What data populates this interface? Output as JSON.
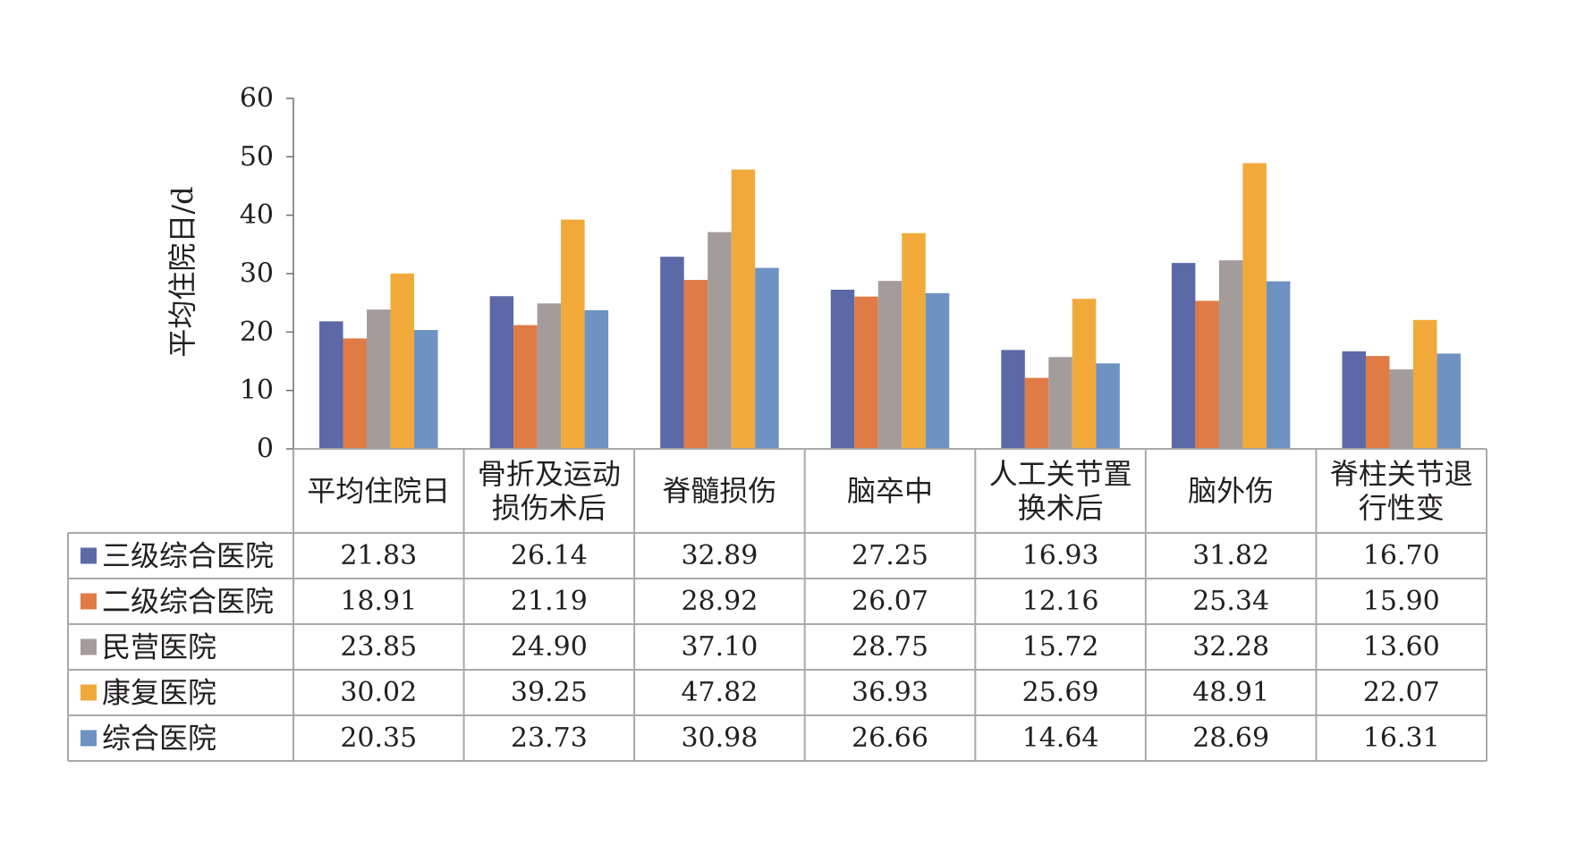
{
  "chart_data": {
    "type": "bar",
    "ylabel": "平均住院日/d",
    "ylim": [
      0,
      60
    ],
    "yticks": [
      0,
      10,
      20,
      30,
      40,
      50,
      60
    ],
    "categories": [
      [
        "平均住院日"
      ],
      [
        "骨折及运动",
        "损伤术后"
      ],
      [
        "脊髓损伤"
      ],
      [
        "脑卒中"
      ],
      [
        "人工关节置",
        "换术后"
      ],
      [
        "脑外伤"
      ],
      [
        "脊柱关节退",
        "行性变"
      ]
    ],
    "series": [
      {
        "name": "三级综合医院",
        "color": "#5b6aa6",
        "values": [
          21.83,
          26.14,
          32.89,
          27.25,
          16.93,
          31.82,
          16.7
        ],
        "labels": [
          "21.83",
          "26.14",
          "32.89",
          "27.25",
          "16.93",
          "31.82",
          "16.70"
        ]
      },
      {
        "name": "二级综合医院",
        "color": "#e07b45",
        "values": [
          18.91,
          21.19,
          28.92,
          26.07,
          12.16,
          25.34,
          15.9
        ],
        "labels": [
          "18.91",
          "21.19",
          "28.92",
          "26.07",
          "12.16",
          "25.34",
          "15.90"
        ]
      },
      {
        "name": "民营医院",
        "color": "#a49c9b",
        "values": [
          23.85,
          24.9,
          37.1,
          28.75,
          15.72,
          32.28,
          13.6
        ],
        "labels": [
          "23.85",
          "24.90",
          "37.10",
          "28.75",
          "15.72",
          "32.28",
          "13.60"
        ]
      },
      {
        "name": "康复医院",
        "color": "#f1aa3a",
        "values": [
          30.02,
          39.25,
          47.82,
          36.93,
          25.69,
          48.91,
          22.07
        ],
        "labels": [
          "30.02",
          "39.25",
          "47.82",
          "36.93",
          "25.69",
          "48.91",
          "22.07"
        ]
      },
      {
        "name": "综合医院",
        "color": "#6e92c2",
        "values": [
          20.35,
          23.73,
          30.98,
          26.66,
          14.64,
          28.69,
          16.31
        ],
        "labels": [
          "20.35",
          "23.73",
          "30.98",
          "26.66",
          "14.64",
          "28.69",
          "16.31"
        ]
      }
    ],
    "legend": "table-left",
    "grid": false
  }
}
